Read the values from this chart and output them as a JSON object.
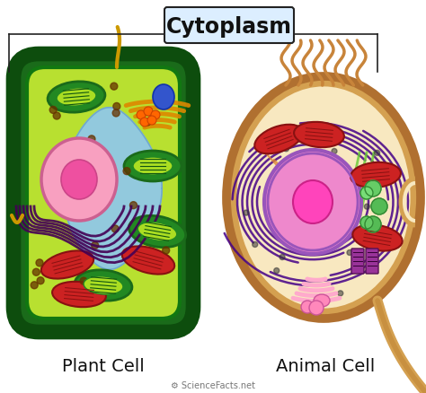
{
  "title": "Cytoplasm",
  "title_box_color": "#dceeff",
  "bg_color": "#ffffff",
  "label_plant": "Plant Cell",
  "label_animal": "Animal Cell",
  "watermark": "⚙ ScienceFacts.net",
  "plant": {
    "outer_fc": "#1a6b1a",
    "outer_ec": "#0d4d0d",
    "inner_fc": "#b8e030",
    "vacuole_fc": "#90c8e8",
    "nucleus_fc": "#f8a0c0",
    "nucleus_ec": "#cc6090",
    "nucleolus_fc": "#ee50a0",
    "chloro_fc": "#228822",
    "chloro_ec": "#1a6a1a",
    "chloro_inner": "#55cc55",
    "mito_fc": "#cc2222",
    "mito_ec": "#881111",
    "er_color": "#dd8800",
    "golgi_color": "#ff8800",
    "ribosome_color": "#663300",
    "vesicle_color": "#3355cc",
    "flagellum_color": "#cc9900",
    "wall_color": "#117711"
  },
  "animal": {
    "outer_fc": "#d4a050",
    "outer_ec": "#b07030",
    "inner_fc": "#f8e8c0",
    "nucleus_fc": "#ee88cc",
    "nucleus_ec": "#9955bb",
    "nucleolus_fc": "#ff44bb",
    "er_color": "#440088",
    "mito_fc": "#cc2222",
    "mito_ec": "#881111",
    "golgi_fc": "#ffaacc",
    "centriole_fc": "#993399",
    "lysosome_fc": "#44cc44",
    "vesicle_fc": "#44cc44",
    "pink_vesicle": "#ff88bb",
    "cilia_color": "#c8843a",
    "tail_color": "#d4a050"
  }
}
